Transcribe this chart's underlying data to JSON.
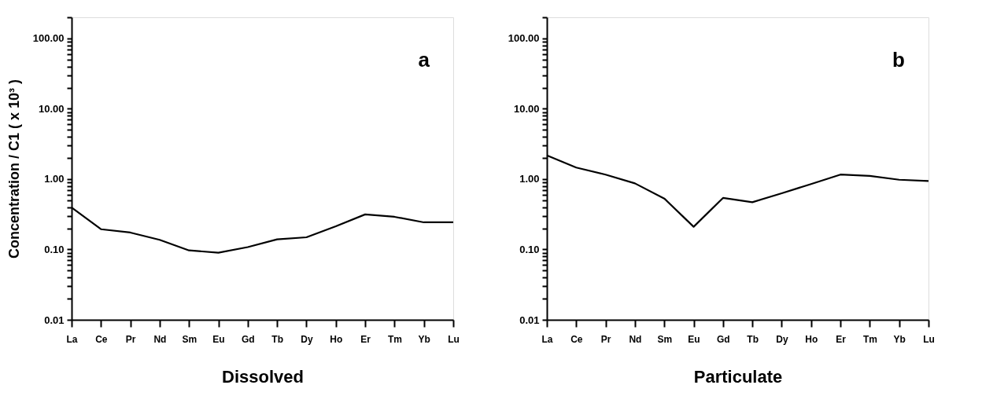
{
  "chart_data": [
    {
      "type": "line",
      "xlabel": "Dissolved",
      "ylabel": "Concentration / C1 ( x 10³ )",
      "annotations": [
        "a"
      ],
      "log": "y",
      "grid": false,
      "marker": "none",
      "line_style": "solid",
      "categories": [
        "La",
        "Ce",
        "Pr",
        "Nd",
        "Sm",
        "Eu",
        "Gd",
        "Tb",
        "Dy",
        "Ho",
        "Er",
        "Tm",
        "Yb",
        "Lu"
      ],
      "series": [
        {
          "color": "#000000",
          "values": [
            0.395,
            0.194,
            0.174,
            0.137,
            0.097,
            0.09,
            0.108,
            0.139,
            0.149,
            0.214,
            0.315,
            0.291,
            0.243,
            0.243
          ]
        }
      ],
      "ylim": [
        0.01,
        200
      ],
      "yticks": [
        {
          "value": 0.01,
          "label": "0.01"
        },
        {
          "value": 0.02,
          "label": null
        },
        {
          "value": 0.03,
          "label": null
        },
        {
          "value": 0.04,
          "label": null
        },
        {
          "value": 0.05,
          "label": null
        },
        {
          "value": 0.06,
          "label": null
        },
        {
          "value": 0.07,
          "label": null
        },
        {
          "value": 0.08,
          "label": null
        },
        {
          "value": 0.09,
          "label": null
        },
        {
          "value": 0.1,
          "label": "0.10"
        },
        {
          "value": 0.2,
          "label": null
        },
        {
          "value": 0.3,
          "label": null
        },
        {
          "value": 0.4,
          "label": null
        },
        {
          "value": 0.5,
          "label": null
        },
        {
          "value": 0.6,
          "label": null
        },
        {
          "value": 0.7,
          "label": null
        },
        {
          "value": 0.8,
          "label": null
        },
        {
          "value": 0.9,
          "label": null
        },
        {
          "value": 1,
          "label": "1.00"
        },
        {
          "value": 2,
          "label": null
        },
        {
          "value": 3,
          "label": null
        },
        {
          "value": 4,
          "label": null
        },
        {
          "value": 5,
          "label": null
        },
        {
          "value": 6,
          "label": null
        },
        {
          "value": 7,
          "label": null
        },
        {
          "value": 8,
          "label": null
        },
        {
          "value": 9,
          "label": null
        },
        {
          "value": 10,
          "label": "10.00"
        },
        {
          "value": 20,
          "label": null
        },
        {
          "value": 30,
          "label": null
        },
        {
          "value": 40,
          "label": null
        },
        {
          "value": 50,
          "label": null
        },
        {
          "value": 60,
          "label": null
        },
        {
          "value": 70,
          "label": null
        },
        {
          "value": 80,
          "label": null
        },
        {
          "value": 90,
          "label": null
        },
        {
          "value": 100,
          "label": "100.00"
        },
        {
          "value": 200,
          "label": null
        }
      ]
    },
    {
      "type": "line",
      "xlabel": "Particulate",
      "annotations": [
        "b"
      ],
      "log": "y",
      "grid": false,
      "marker": "none",
      "line_style": "solid",
      "categories": [
        "La",
        "Ce",
        "Pr",
        "Nd",
        "Sm",
        "Eu",
        "Gd",
        "Tb",
        "Dy",
        "Ho",
        "Er",
        "Tm",
        "Yb",
        "Lu"
      ],
      "series": [
        {
          "color": "#000000",
          "values": [
            2.18,
            1.46,
            1.16,
            0.87,
            0.53,
            0.21,
            0.54,
            0.47,
            0.63,
            0.85,
            1.16,
            1.11,
            0.98,
            0.94
          ]
        }
      ],
      "ylim": [
        0.01,
        200
      ],
      "yticks": [
        {
          "value": 0.01,
          "label": "0.01"
        },
        {
          "value": 0.02,
          "label": null
        },
        {
          "value": 0.03,
          "label": null
        },
        {
          "value": 0.04,
          "label": null
        },
        {
          "value": 0.05,
          "label": null
        },
        {
          "value": 0.06,
          "label": null
        },
        {
          "value": 0.07,
          "label": null
        },
        {
          "value": 0.08,
          "label": null
        },
        {
          "value": 0.09,
          "label": null
        },
        {
          "value": 0.1,
          "label": "0.10"
        },
        {
          "value": 0.2,
          "label": null
        },
        {
          "value": 0.3,
          "label": null
        },
        {
          "value": 0.4,
          "label": null
        },
        {
          "value": 0.5,
          "label": null
        },
        {
          "value": 0.6,
          "label": null
        },
        {
          "value": 0.7,
          "label": null
        },
        {
          "value": 0.8,
          "label": null
        },
        {
          "value": 0.9,
          "label": null
        },
        {
          "value": 1,
          "label": "1.00"
        },
        {
          "value": 2,
          "label": null
        },
        {
          "value": 3,
          "label": null
        },
        {
          "value": 4,
          "label": null
        },
        {
          "value": 5,
          "label": null
        },
        {
          "value": 6,
          "label": null
        },
        {
          "value": 7,
          "label": null
        },
        {
          "value": 8,
          "label": null
        },
        {
          "value": 9,
          "label": null
        },
        {
          "value": 10,
          "label": "10.00"
        },
        {
          "value": 20,
          "label": null
        },
        {
          "value": 30,
          "label": null
        },
        {
          "value": 40,
          "label": null
        },
        {
          "value": 50,
          "label": null
        },
        {
          "value": 60,
          "label": null
        },
        {
          "value": 70,
          "label": null
        },
        {
          "value": 80,
          "label": null
        },
        {
          "value": 90,
          "label": null
        },
        {
          "value": 100,
          "label": "100.00"
        },
        {
          "value": 200,
          "label": null
        }
      ]
    }
  ]
}
